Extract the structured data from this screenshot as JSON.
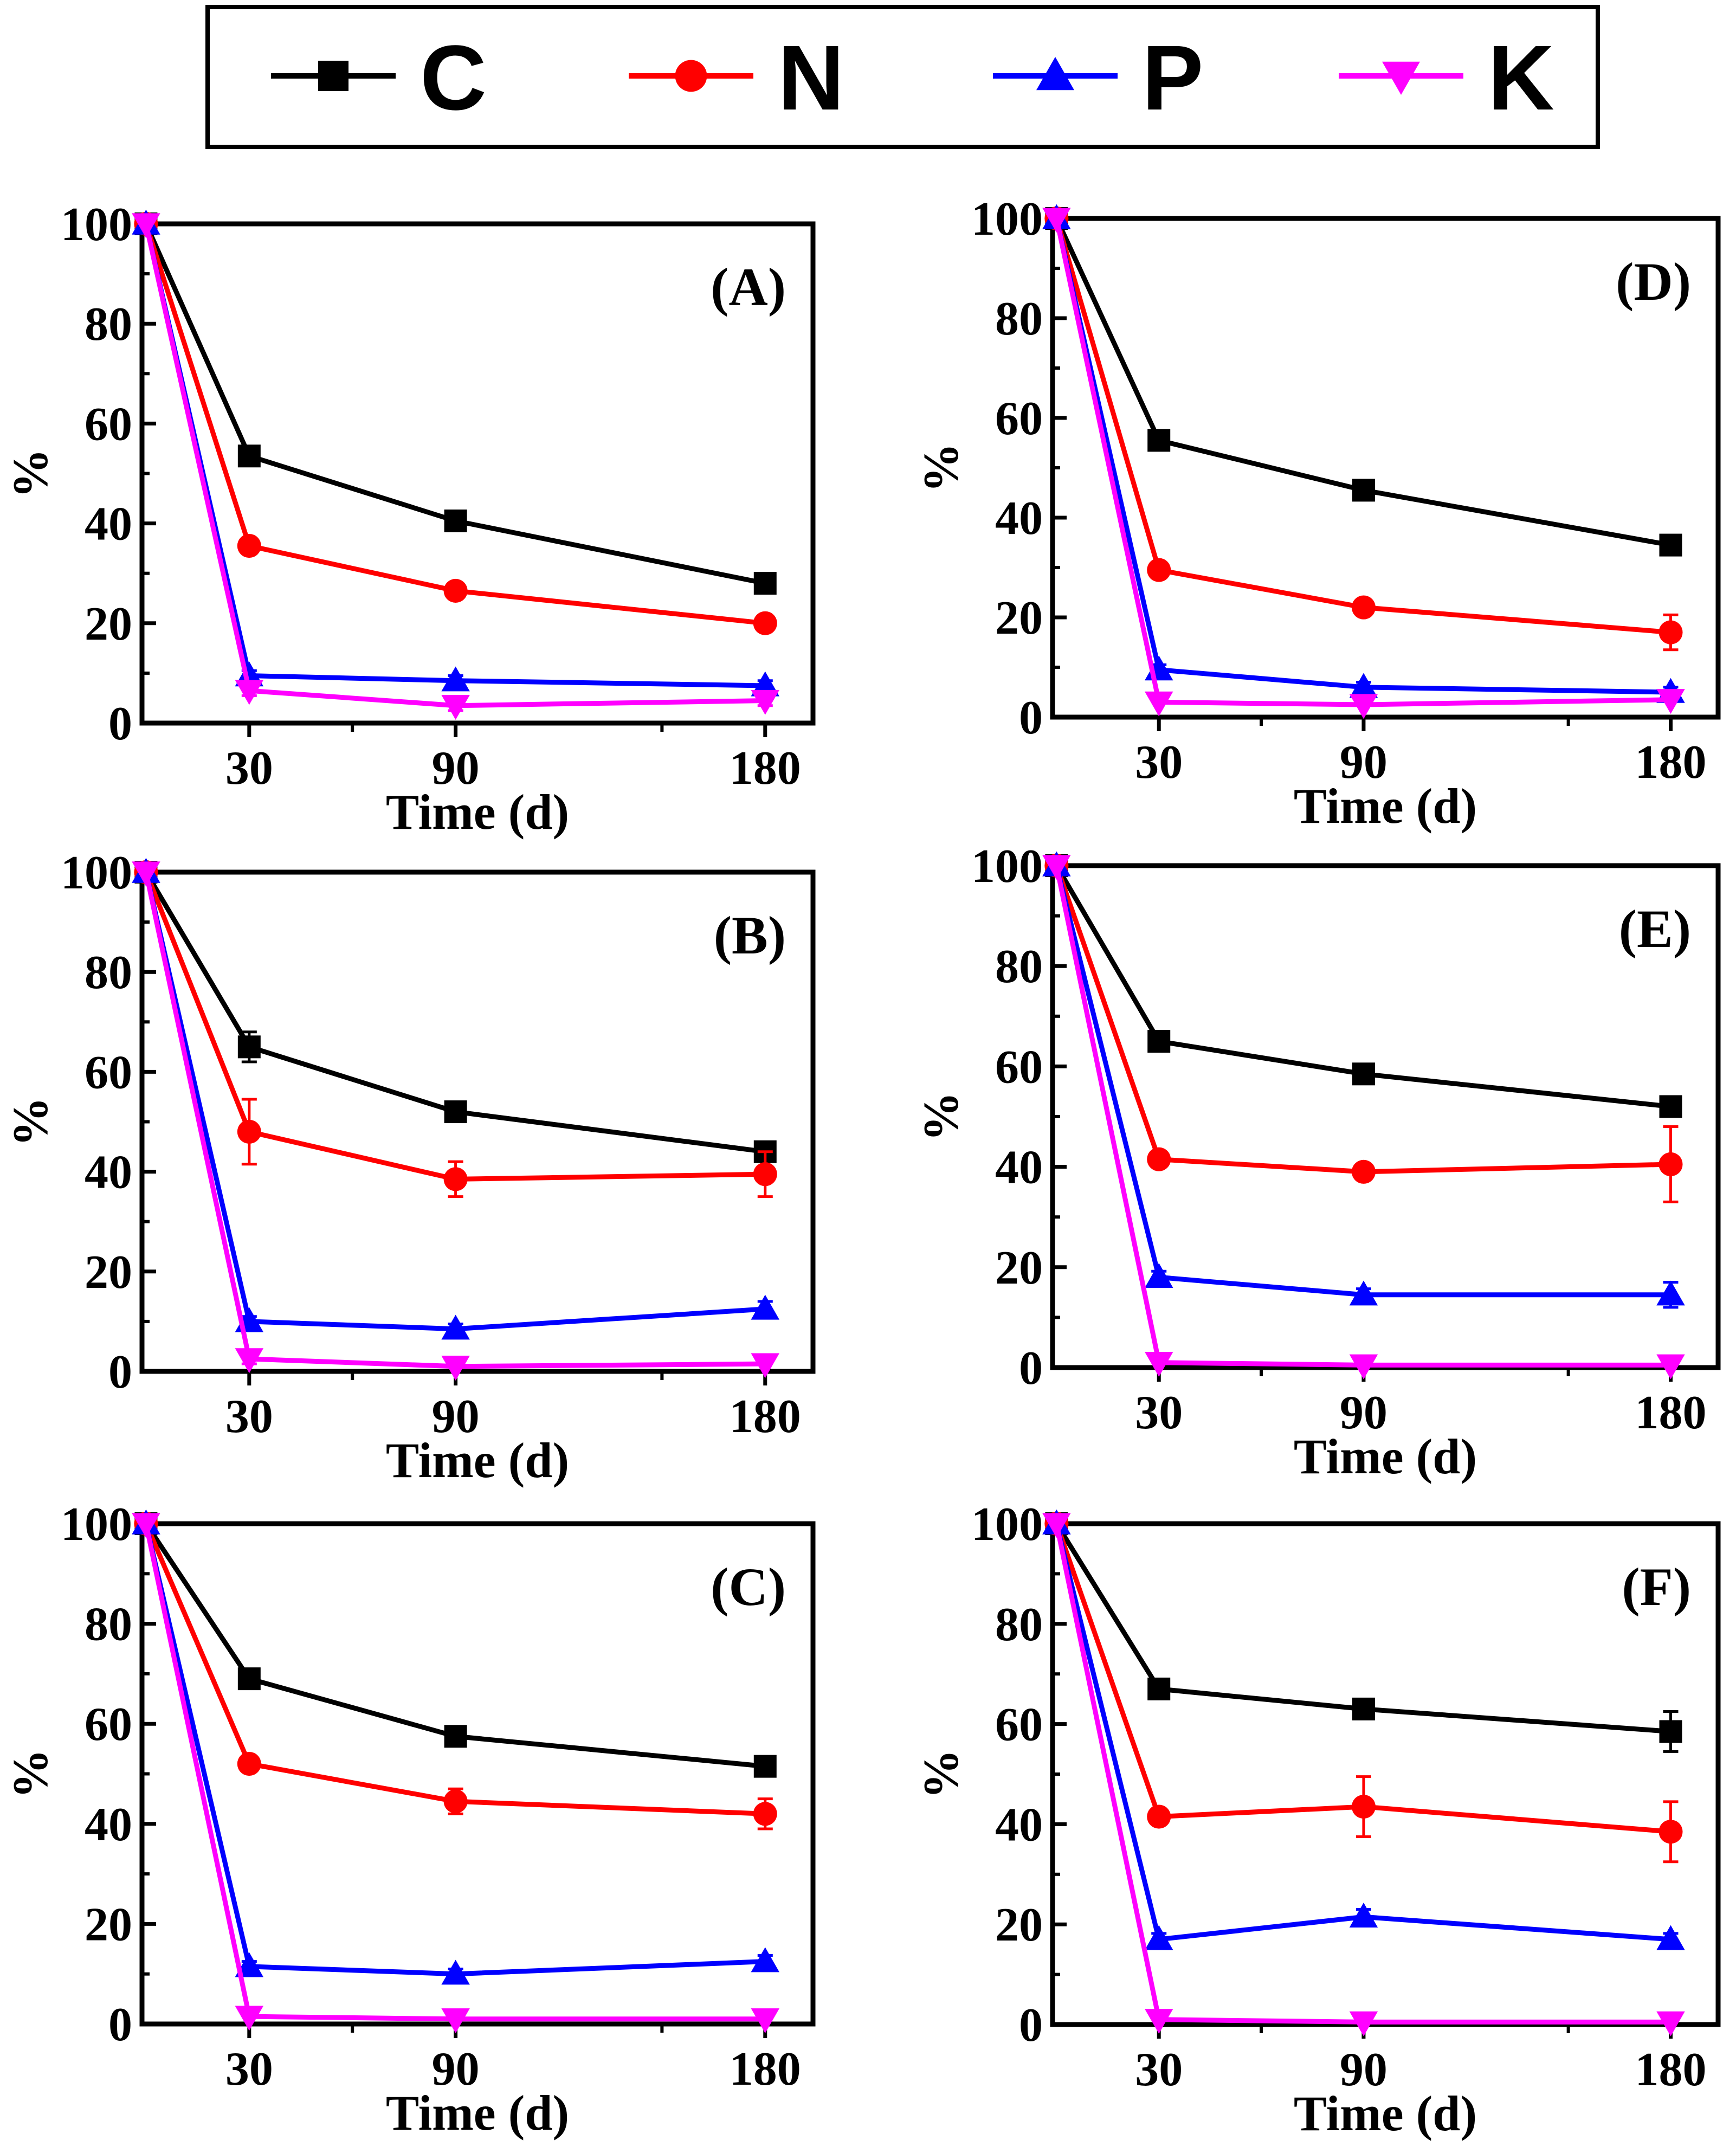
{
  "legend": {
    "items": [
      {
        "label": "C",
        "color": "#000000",
        "marker": "square"
      },
      {
        "label": "N",
        "color": "#ff0000",
        "marker": "circle"
      },
      {
        "label": "P",
        "color": "#0000ff",
        "marker": "triangle-up"
      },
      {
        "label": "K",
        "color": "#ff00ff",
        "marker": "triangle-down"
      }
    ]
  },
  "chart_data": [
    {
      "type": "line",
      "panel": "(A)",
      "xlabel": "Time (d)",
      "ylabel": "%",
      "x": [
        0,
        30,
        90,
        180
      ],
      "xticks": [
        30,
        90,
        180
      ],
      "yticks": [
        0,
        20,
        40,
        60,
        80,
        100
      ],
      "ylim": [
        0,
        100
      ],
      "series": [
        {
          "name": "C",
          "values": [
            100,
            53.5,
            40.5,
            28
          ],
          "err": [
            0,
            1.5,
            1.5,
            1.2
          ]
        },
        {
          "name": "N",
          "values": [
            100,
            35.5,
            26.5,
            20
          ],
          "err": [
            0,
            1.2,
            1.2,
            1.2
          ]
        },
        {
          "name": "P",
          "values": [
            100,
            9.5,
            8.5,
            7.5
          ],
          "err": [
            0,
            1,
            1,
            1
          ]
        },
        {
          "name": "K",
          "values": [
            100,
            6.5,
            3.5,
            4.5
          ],
          "err": [
            0,
            1,
            1,
            1
          ]
        }
      ]
    },
    {
      "type": "line",
      "panel": "(B)",
      "xlabel": "Time (d)",
      "ylabel": "%",
      "x": [
        0,
        30,
        90,
        180
      ],
      "xticks": [
        30,
        90,
        180
      ],
      "yticks": [
        0,
        20,
        40,
        60,
        80,
        100
      ],
      "ylim": [
        0,
        100
      ],
      "series": [
        {
          "name": "C",
          "values": [
            100,
            65,
            52,
            44
          ],
          "err": [
            0,
            3,
            1.5,
            1.5
          ]
        },
        {
          "name": "N",
          "values": [
            100,
            48,
            38.5,
            39.5
          ],
          "err": [
            0,
            6.5,
            3.5,
            4.5
          ]
        },
        {
          "name": "P",
          "values": [
            100,
            10,
            8.5,
            12.5
          ],
          "err": [
            0,
            1,
            1,
            1.5
          ]
        },
        {
          "name": "K",
          "values": [
            100,
            2.5,
            1,
            1.5
          ],
          "err": [
            0,
            1,
            0.5,
            0.5
          ]
        }
      ]
    },
    {
      "type": "line",
      "panel": "(C)",
      "xlabel": "Time (d)",
      "ylabel": "%",
      "x": [
        0,
        30,
        90,
        180
      ],
      "xticks": [
        30,
        90,
        180
      ],
      "yticks": [
        0,
        20,
        40,
        60,
        80,
        100
      ],
      "ylim": [
        0,
        100
      ],
      "series": [
        {
          "name": "C",
          "values": [
            100,
            69,
            57.5,
            51.5
          ],
          "err": [
            0,
            1.2,
            1.5,
            1.5
          ]
        },
        {
          "name": "N",
          "values": [
            100,
            52,
            44.5,
            42
          ],
          "err": [
            0,
            1.2,
            2.5,
            3
          ]
        },
        {
          "name": "P",
          "values": [
            100,
            11.5,
            10,
            12.5
          ],
          "err": [
            0,
            1,
            1,
            1.2
          ]
        },
        {
          "name": "K",
          "values": [
            100,
            1.5,
            1,
            1
          ],
          "err": [
            0,
            0.5,
            0.5,
            0.5
          ]
        }
      ]
    },
    {
      "type": "line",
      "panel": "(D)",
      "xlabel": "Time (d)",
      "ylabel": "%",
      "x": [
        0,
        30,
        90,
        180
      ],
      "xticks": [
        30,
        90,
        180
      ],
      "yticks": [
        0,
        20,
        40,
        60,
        80,
        100
      ],
      "ylim": [
        0,
        100
      ],
      "series": [
        {
          "name": "C",
          "values": [
            100,
            55.5,
            45.5,
            34.5
          ],
          "err": [
            0,
            1.2,
            1.2,
            1.2
          ]
        },
        {
          "name": "N",
          "values": [
            100,
            29.5,
            22,
            17
          ],
          "err": [
            0,
            1.2,
            1.2,
            3.5
          ]
        },
        {
          "name": "P",
          "values": [
            100,
            9.5,
            6,
            5
          ],
          "err": [
            0,
            1,
            1,
            1
          ]
        },
        {
          "name": "K",
          "values": [
            100,
            3,
            2.5,
            3.5
          ],
          "err": [
            0,
            0.5,
            0.5,
            0.5
          ]
        }
      ]
    },
    {
      "type": "line",
      "panel": "(E)",
      "xlabel": "Time (d)",
      "ylabel": "%",
      "x": [
        0,
        30,
        90,
        180
      ],
      "xticks": [
        30,
        90,
        180
      ],
      "yticks": [
        0,
        20,
        40,
        60,
        80,
        100
      ],
      "ylim": [
        0,
        100
      ],
      "series": [
        {
          "name": "C",
          "values": [
            100,
            65,
            58.5,
            52
          ],
          "err": [
            0,
            1.2,
            1.5,
            1.5
          ]
        },
        {
          "name": "N",
          "values": [
            100,
            41.5,
            39,
            40.5
          ],
          "err": [
            0,
            1.2,
            1.2,
            7.5
          ]
        },
        {
          "name": "P",
          "values": [
            100,
            18,
            14.5,
            14.5
          ],
          "err": [
            0,
            1.2,
            1.2,
            2.5
          ]
        },
        {
          "name": "K",
          "values": [
            100,
            1,
            0.5,
            0.5
          ],
          "err": [
            0,
            0.5,
            0.5,
            0.5
          ]
        }
      ]
    },
    {
      "type": "line",
      "panel": "(F)",
      "xlabel": "Time (d)",
      "ylabel": "%",
      "x": [
        0,
        30,
        90,
        180
      ],
      "xticks": [
        30,
        90,
        180
      ],
      "yticks": [
        0,
        20,
        40,
        60,
        80,
        100
      ],
      "ylim": [
        0,
        100
      ],
      "series": [
        {
          "name": "C",
          "values": [
            100,
            67,
            63,
            58.5
          ],
          "err": [
            0,
            1.2,
            1.2,
            4
          ]
        },
        {
          "name": "N",
          "values": [
            100,
            41.5,
            43.5,
            38.5
          ],
          "err": [
            0,
            1.2,
            6,
            6
          ]
        },
        {
          "name": "P",
          "values": [
            100,
            17,
            21.5,
            17
          ],
          "err": [
            0,
            1.2,
            1.5,
            1.2
          ]
        },
        {
          "name": "K",
          "values": [
            100,
            1,
            0.5,
            0.5
          ],
          "err": [
            0,
            0.5,
            0.5,
            0.5
          ]
        }
      ]
    }
  ]
}
